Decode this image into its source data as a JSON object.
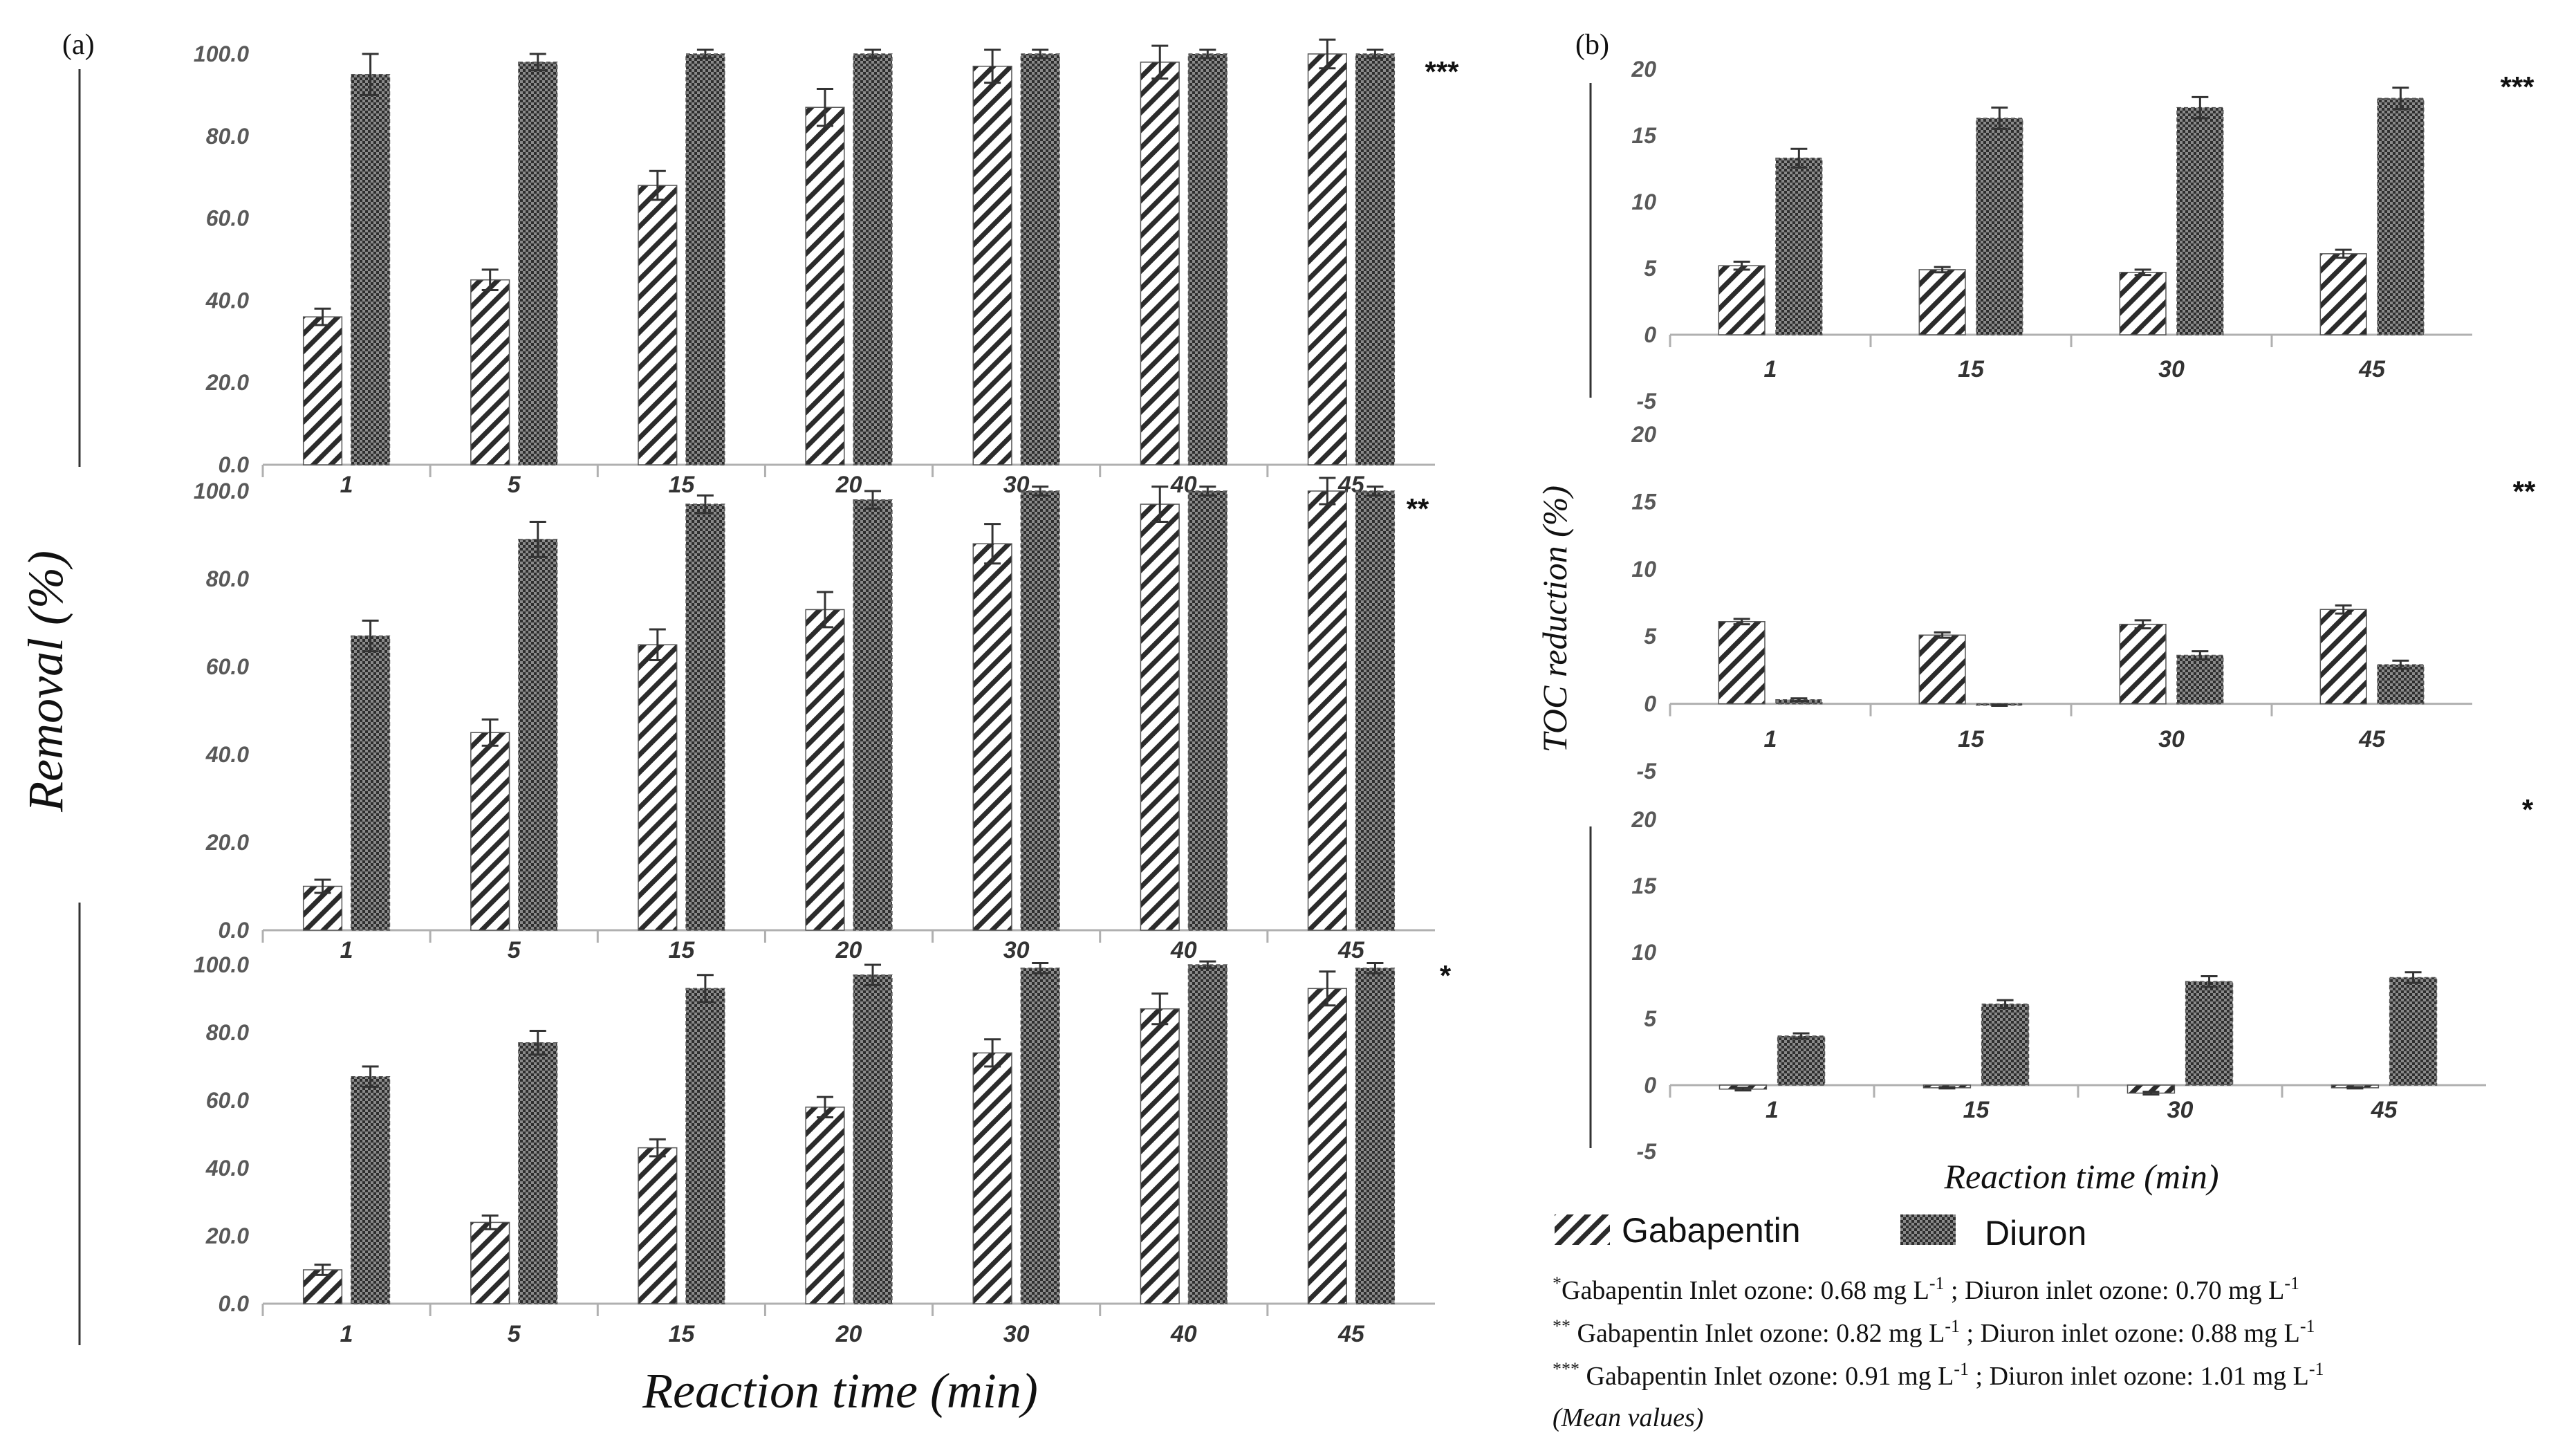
{
  "panel_labels": {
    "a": "(a)",
    "b": "(b)"
  },
  "axis_labels": {
    "a_y": "Removal  (%)",
    "a_x": "Reaction time (min)",
    "b_y": "TOC reduction (%)",
    "b_x": "Reaction time (min)"
  },
  "legend": {
    "series1": "Gabapentin",
    "series2": "Diuron"
  },
  "notes": {
    "line1": {
      "mark": "*",
      "text1": "Gabapentin  Inlet  ozone:  0.68 mg L",
      "text2": " ; Diuron  inlet  ozone:  0.70 mg L"
    },
    "line2": {
      "mark": "**",
      "text1": " Gabapentin  Inlet  ozone:  0.82 mg L",
      "text2": " ; Diuron  inlet  ozone:  0.88 mg L"
    },
    "line3": {
      "mark": "***",
      "text1": " Gabapentin  Inlet  ozone:  0.91 mg L",
      "text2": " ; Diuron  inlet  ozone:  1.01 mg L"
    },
    "unit_sup": "-1",
    "mean": "(Mean values)"
  },
  "colors": {
    "hatch": "#2b2b2b",
    "dots": "#3a3a3a",
    "axis": "#b0b0b0",
    "error": "#333333"
  },
  "chart_data": [
    {
      "type": "bar",
      "id": "a1",
      "marker": "***",
      "categories": [
        "1",
        "5",
        "15",
        "20",
        "30",
        "40",
        "45"
      ],
      "series": [
        {
          "name": "Gabapentin",
          "values": [
            36,
            45,
            68,
            87,
            97,
            98,
            100
          ],
          "errors": [
            2,
            2.5,
            3.5,
            4.5,
            4,
            4,
            3.5
          ]
        },
        {
          "name": "Diuron",
          "values": [
            95,
            98,
            100,
            100,
            100,
            100,
            100
          ],
          "errors": [
            5,
            2,
            1,
            1,
            1,
            1,
            1
          ]
        }
      ],
      "ylim": [
        0,
        100
      ],
      "yticks": [
        "0.0",
        "20.0",
        "40.0",
        "60.0",
        "80.0",
        "100.0"
      ]
    },
    {
      "type": "bar",
      "id": "a2",
      "marker": "**",
      "categories": [
        "1",
        "5",
        "15",
        "20",
        "30",
        "40",
        "45"
      ],
      "series": [
        {
          "name": "Gabapentin",
          "values": [
            10,
            45,
            65,
            73,
            88,
            97,
            100
          ],
          "errors": [
            1.5,
            3,
            3.5,
            4,
            4.5,
            4,
            3
          ]
        },
        {
          "name": "Diuron",
          "values": [
            67,
            89,
            97,
            98,
            100,
            100,
            100
          ],
          "errors": [
            3.5,
            4,
            2,
            2,
            1,
            1,
            1
          ]
        }
      ],
      "ylim": [
        0,
        100
      ],
      "yticks": [
        "0.0",
        "20.0",
        "40.0",
        "60.0",
        "80.0",
        "100.0"
      ]
    },
    {
      "type": "bar",
      "id": "a3",
      "marker": "*",
      "categories": [
        "1",
        "5",
        "15",
        "20",
        "30",
        "40",
        "45"
      ],
      "series": [
        {
          "name": "Gabapentin",
          "values": [
            10,
            24,
            46,
            58,
            74,
            87,
            93
          ],
          "errors": [
            1.5,
            2,
            2.5,
            3,
            4,
            4.5,
            5
          ]
        },
        {
          "name": "Diuron",
          "values": [
            67,
            77,
            93,
            97,
            99,
            100,
            99
          ],
          "errors": [
            3,
            3.5,
            4,
            3,
            1.5,
            1,
            1.5
          ]
        }
      ],
      "ylim": [
        0,
        100
      ],
      "yticks": [
        "0.0",
        "20.0",
        "40.0",
        "60.0",
        "80.0",
        "100.0"
      ]
    },
    {
      "type": "bar",
      "id": "b1",
      "marker": "***",
      "categories": [
        "1",
        "15",
        "30",
        "45"
      ],
      "series": [
        {
          "name": "Gabapentin",
          "values": [
            5.2,
            4.9,
            4.7,
            6.1
          ],
          "errors": [
            0.3,
            0.2,
            0.2,
            0.3
          ]
        },
        {
          "name": "Diuron",
          "values": [
            13.3,
            16.3,
            17.1,
            17.8
          ],
          "errors": [
            0.7,
            0.8,
            0.8,
            0.8
          ]
        }
      ],
      "ylim": [
        -5,
        20
      ],
      "yticks": [
        "-5",
        "0",
        "5",
        "10",
        "15",
        "20"
      ]
    },
    {
      "type": "bar",
      "id": "b2",
      "marker": "**",
      "categories": [
        "1",
        "15",
        "30",
        "45"
      ],
      "series": [
        {
          "name": "Gabapentin",
          "values": [
            6.1,
            5.1,
            5.9,
            7.0
          ],
          "errors": [
            0.2,
            0.2,
            0.3,
            0.3
          ]
        },
        {
          "name": "Diuron",
          "values": [
            0.3,
            -0.1,
            3.6,
            2.9
          ],
          "errors": [
            0.1,
            0.05,
            0.3,
            0.3
          ]
        }
      ],
      "ylim": [
        -5,
        20
      ],
      "yticks": [
        "-5",
        "0",
        "5",
        "10",
        "15",
        "20"
      ]
    },
    {
      "type": "bar",
      "id": "b3",
      "marker": "*",
      "categories": [
        "1",
        "15",
        "30",
        "45"
      ],
      "series": [
        {
          "name": "Gabapentin",
          "values": [
            -0.3,
            -0.2,
            -0.6,
            -0.2
          ],
          "errors": [
            0.1,
            0.05,
            0.1,
            0.05
          ]
        },
        {
          "name": "Diuron",
          "values": [
            3.7,
            6.1,
            7.8,
            8.1
          ],
          "errors": [
            0.2,
            0.3,
            0.4,
            0.4
          ]
        }
      ],
      "ylim": [
        -5,
        20
      ],
      "yticks": [
        "-5",
        "0",
        "5",
        "10",
        "15",
        "20"
      ]
    }
  ]
}
